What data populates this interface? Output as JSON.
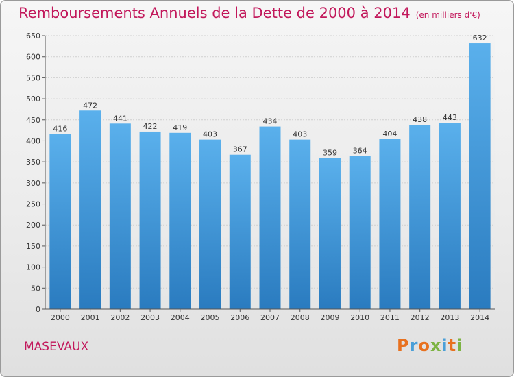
{
  "header": {
    "title": "Remboursements Annuels de la Dette de 2000 à 2014",
    "unit": "(en milliers d'€)"
  },
  "footer": {
    "commune": "MASEVAUX",
    "logo_text": "Proxiti",
    "logo_colors": [
      "#e8711f",
      "#4a9fd8",
      "#e8711f",
      "#7cb342",
      "#4a9fd8",
      "#e8711f",
      "#7cb342"
    ]
  },
  "colors": {
    "title": "#c2185b",
    "bar_top": "#5ab0ec",
    "bar_bottom": "#2a7bbf"
  },
  "chart_data": {
    "type": "bar",
    "title": "Remboursements Annuels de la Dette de 2000 à 2014",
    "subtitle": "(en milliers d'€)",
    "categories": [
      "2000",
      "2001",
      "2002",
      "2003",
      "2004",
      "2005",
      "2006",
      "2007",
      "2008",
      "2009",
      "2010",
      "2011",
      "2012",
      "2013",
      "2014"
    ],
    "values": [
      416,
      472,
      441,
      422,
      419,
      403,
      367,
      434,
      403,
      359,
      364,
      404,
      438,
      443,
      632
    ],
    "ylim": [
      0,
      650
    ],
    "yticks": [
      0,
      50,
      100,
      150,
      200,
      250,
      300,
      350,
      400,
      450,
      500,
      550,
      600,
      650
    ],
    "grid": true,
    "legend": "none"
  }
}
